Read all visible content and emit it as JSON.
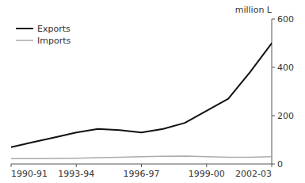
{
  "chart_data": {
    "type": "line",
    "y_label": "million L",
    "categories": [
      "1990-91",
      null,
      null,
      "1993-94",
      null,
      null,
      "1996-97",
      null,
      null,
      "1999-00",
      null,
      null,
      "2002-03"
    ],
    "series": [
      {
        "name": "Exports",
        "color": "#111111",
        "values": [
          70,
          90,
          110,
          130,
          145,
          140,
          130,
          145,
          170,
          220,
          270,
          380,
          500
        ]
      },
      {
        "name": "Imports",
        "color": "#aaaaaa",
        "values": [
          22,
          22,
          23,
          24,
          26,
          28,
          30,
          32,
          33,
          30,
          28,
          28,
          30
        ]
      }
    ],
    "ylim": [
      0,
      600
    ],
    "yticks": [
      0,
      200,
      400,
      600
    ],
    "grid": false,
    "legend": "top-left"
  }
}
